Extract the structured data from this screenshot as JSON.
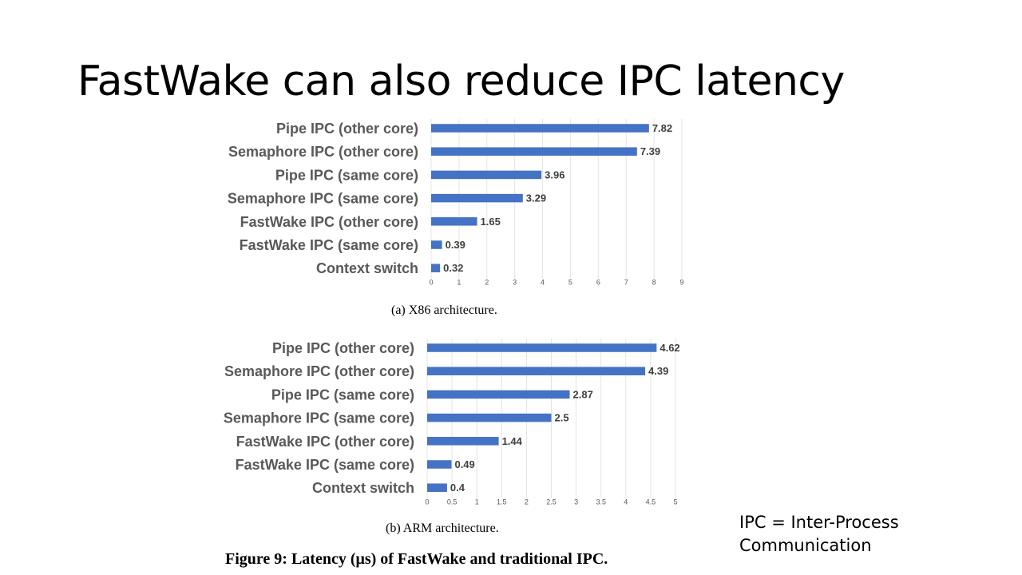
{
  "slide": {
    "title": "FastWake can also reduce IPC latency",
    "note_line1": "IPC = Inter-Process",
    "note_line2": "Communication",
    "figure_caption": "Figure 9: Latency (μs) of FastWake and traditional IPC."
  },
  "chart_data": [
    {
      "type": "bar",
      "orientation": "horizontal",
      "caption": "(a)  X86 architecture.",
      "categories": [
        "Pipe IPC (other core)",
        "Semaphore IPC (other core)",
        "Pipe IPC (same core)",
        "Semaphore IPC (same core)",
        "FastWake IPC (other core)",
        "FastWake IPC (same core)",
        "Context switch"
      ],
      "values": [
        7.82,
        7.39,
        3.96,
        3.29,
        1.65,
        0.39,
        0.32
      ],
      "value_labels": [
        "7.82",
        "7.39",
        "3.96",
        "3.29",
        "1.65",
        "0.39",
        "0.32"
      ],
      "xlim": [
        0,
        9
      ],
      "xticks": [
        "0",
        "1",
        "2",
        "3",
        "4",
        "5",
        "6",
        "7",
        "8",
        "9"
      ],
      "grid": true,
      "bar_color": "#4472c4"
    },
    {
      "type": "bar",
      "orientation": "horizontal",
      "caption": "(b)  ARM architecture.",
      "categories": [
        "Pipe IPC (other core)",
        "Semaphore IPC (other core)",
        "Pipe IPC (same core)",
        "Semaphore IPC (same core)",
        "FastWake IPC (other core)",
        "FastWake IPC (same core)",
        "Context switch"
      ],
      "values": [
        4.62,
        4.39,
        2.87,
        2.5,
        1.44,
        0.49,
        0.4
      ],
      "value_labels": [
        "4.62",
        "4.39",
        "2.87",
        "2.5",
        "1.44",
        "0.49",
        "0.4"
      ],
      "xlim": [
        0,
        5
      ],
      "xticks": [
        "0",
        "0.5",
        "1",
        "1.5",
        "2",
        "2.5",
        "3",
        "3.5",
        "4",
        "4.5",
        "5"
      ],
      "grid": true,
      "bar_color": "#4472c4"
    }
  ]
}
